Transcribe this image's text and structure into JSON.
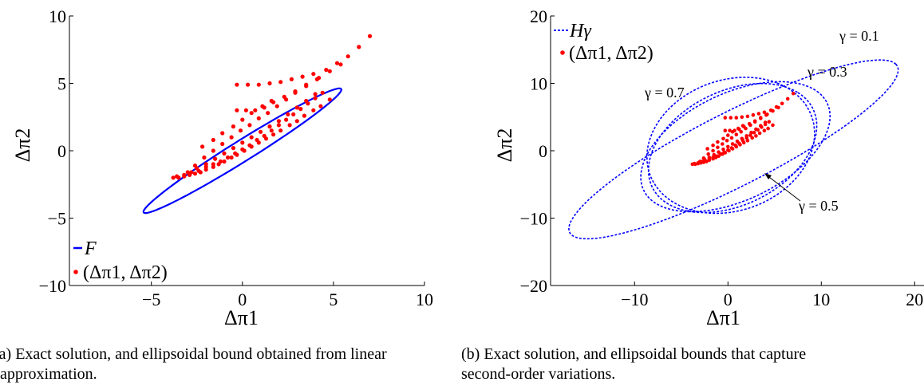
{
  "colors": {
    "exact": "#ff0000",
    "bound": "#0000ff",
    "axis": "#000000"
  },
  "captions": {
    "a_line1": "(a) Exact solution, and ellipsoidal bound obtained from linear",
    "a_line2": "approximation.",
    "b_line1": "(b) Exact solution, and ellipsoidal bounds that capture",
    "b_line2": "second-order variations."
  },
  "chart_data": [
    {
      "type": "scatter",
      "xlabel": "Δπ1",
      "ylabel": "Δπ2",
      "xlim": [
        -9.5,
        10
      ],
      "ylim": [
        -10,
        10
      ],
      "xticks": [
        -5,
        0,
        5,
        10
      ],
      "yticks": [
        -10,
        -5,
        0,
        5,
        10
      ],
      "grid": false,
      "legend": {
        "position": "bottom-left",
        "entries": [
          {
            "label": "F",
            "style": "line"
          },
          {
            "label": "(Δπ1, Δπ2)",
            "style": "dots"
          }
        ]
      },
      "series": [
        {
          "label_ref": "F",
          "kind": "ellipse",
          "center": [
            0,
            0
          ],
          "semi_axes": [
            7.1,
            0.7
          ],
          "angle_deg": 40.3
        },
        {
          "label_ref": "(Δπ1, Δπ2)",
          "kind": "points",
          "points": [
            [
              -3.8,
              -2.0
            ],
            [
              -3.5,
              -2.0
            ],
            [
              -3.2,
              -1.9
            ],
            [
              -2.9,
              -1.8
            ],
            [
              -2.6,
              -1.7
            ],
            [
              -2.3,
              -1.6
            ],
            [
              -2.0,
              -1.4
            ],
            [
              -1.6,
              -1.2
            ],
            [
              -1.3,
              -1.0
            ],
            [
              -1.0,
              -0.8
            ],
            [
              -0.6,
              -0.5
            ],
            [
              -0.3,
              -0.3
            ],
            [
              0.1,
              0.0
            ],
            [
              0.5,
              0.3
            ],
            [
              0.9,
              0.6
            ],
            [
              1.3,
              0.9
            ],
            [
              1.7,
              1.2
            ],
            [
              2.1,
              1.5
            ],
            [
              2.6,
              1.9
            ],
            [
              3.0,
              2.2
            ],
            [
              3.4,
              2.6
            ],
            [
              3.9,
              3.0
            ],
            [
              4.3,
              3.3
            ],
            [
              4.8,
              3.8
            ],
            [
              -3.6,
              -1.9
            ],
            [
              -3.2,
              -1.8
            ],
            [
              -2.8,
              -1.6
            ],
            [
              -2.4,
              -1.5
            ],
            [
              -2.0,
              -1.2
            ],
            [
              -1.6,
              -1.0
            ],
            [
              -1.2,
              -0.8
            ],
            [
              -0.8,
              -0.5
            ],
            [
              -0.4,
              -0.2
            ],
            [
              0.0,
              0.1
            ],
            [
              0.4,
              0.4
            ],
            [
              0.8,
              0.8
            ],
            [
              1.2,
              1.1
            ],
            [
              1.6,
              1.5
            ],
            [
              2.0,
              1.9
            ],
            [
              2.4,
              2.3
            ],
            [
              2.8,
              2.7
            ],
            [
              3.2,
              3.1
            ],
            [
              3.6,
              3.5
            ],
            [
              4.0,
              3.9
            ],
            [
              4.4,
              4.3
            ],
            [
              -3.0,
              -1.6
            ],
            [
              -2.5,
              -1.3
            ],
            [
              -2.0,
              -1.0
            ],
            [
              -1.5,
              -0.6
            ],
            [
              -1.0,
              -0.2
            ],
            [
              -0.5,
              0.2
            ],
            [
              0.0,
              0.6
            ],
            [
              0.5,
              1.0
            ],
            [
              1.0,
              1.4
            ],
            [
              1.5,
              1.8
            ],
            [
              2.0,
              2.2
            ],
            [
              2.5,
              2.7
            ],
            [
              3.0,
              3.2
            ],
            [
              3.5,
              3.7
            ],
            [
              4.0,
              4.2
            ],
            [
              -2.6,
              -1.1
            ],
            [
              -2.1,
              -0.5
            ],
            [
              -1.6,
              0.0
            ],
            [
              -1.1,
              0.5
            ],
            [
              -0.6,
              1.0
            ],
            [
              -0.1,
              1.5
            ],
            [
              0.4,
              1.9
            ],
            [
              0.9,
              2.4
            ],
            [
              1.4,
              2.8
            ],
            [
              1.9,
              3.3
            ],
            [
              2.4,
              3.8
            ],
            [
              2.9,
              4.3
            ],
            [
              3.5,
              4.8
            ],
            [
              4.1,
              5.3
            ],
            [
              -2.2,
              0.3
            ],
            [
              -1.6,
              0.8
            ],
            [
              -1.1,
              1.3
            ],
            [
              -0.5,
              1.8
            ],
            [
              0.0,
              2.3
            ],
            [
              0.5,
              2.8
            ],
            [
              1.1,
              3.3
            ],
            [
              1.6,
              3.7
            ],
            [
              -0.3,
              3.0
            ],
            [
              0.2,
              3.0
            ],
            [
              0.7,
              3.0
            ],
            [
              1.2,
              3.2
            ],
            [
              1.7,
              3.6
            ],
            [
              2.3,
              4.0
            ],
            [
              2.9,
              4.4
            ],
            [
              3.5,
              4.9
            ],
            [
              4.2,
              5.4
            ],
            [
              4.8,
              5.9
            ],
            [
              5.4,
              6.4
            ],
            [
              -0.3,
              4.9
            ],
            [
              0.3,
              4.9
            ],
            [
              0.9,
              4.9
            ],
            [
              1.5,
              5.0
            ],
            [
              2.1,
              5.1
            ],
            [
              2.7,
              5.3
            ],
            [
              3.3,
              5.5
            ],
            [
              3.9,
              5.7
            ],
            [
              4.6,
              6.0
            ],
            [
              5.2,
              6.5
            ],
            [
              5.8,
              7.0
            ],
            [
              6.4,
              7.7
            ],
            [
              7.0,
              8.5
            ]
          ]
        }
      ]
    },
    {
      "type": "scatter",
      "xlabel": "Δπ1",
      "ylabel": "Δπ2",
      "xlim": [
        -19,
        21
      ],
      "ylim": [
        -20,
        20
      ],
      "xticks": [
        -10,
        0,
        10,
        20
      ],
      "yticks": [
        -20,
        -10,
        0,
        10,
        20
      ],
      "grid": false,
      "legend": {
        "position": "top-left",
        "entries": [
          {
            "label": "Hγ",
            "style": "dashed"
          },
          {
            "label": "(Δπ1, Δπ2)",
            "style": "dots"
          }
        ]
      },
      "annotations": [
        {
          "text": "γ = 0.1"
        },
        {
          "text": "γ = 0.3"
        },
        {
          "text": "γ = 0.7"
        },
        {
          "text": "γ = 0.5"
        }
      ],
      "ellipses": [
        {
          "gamma": "0.1",
          "center": [
            0.6,
            0.2
          ],
          "semi_axes": [
            21.5,
            5.0
          ],
          "angle_deg": 36
        },
        {
          "gamma": "0.3",
          "center": [
            0.8,
            0.6
          ],
          "semi_axes": [
            12.0,
            7.2
          ],
          "angle_deg": 42
        },
        {
          "gamma": "0.5",
          "center": [
            0.5,
            0.4
          ],
          "semi_axes": [
            10.8,
            7.5
          ],
          "angle_deg": 50
        },
        {
          "gamma": "0.7",
          "center": [
            0.3,
            0.8
          ],
          "semi_axes": [
            10.5,
            8.5
          ],
          "angle_deg": 62
        }
      ]
    }
  ]
}
